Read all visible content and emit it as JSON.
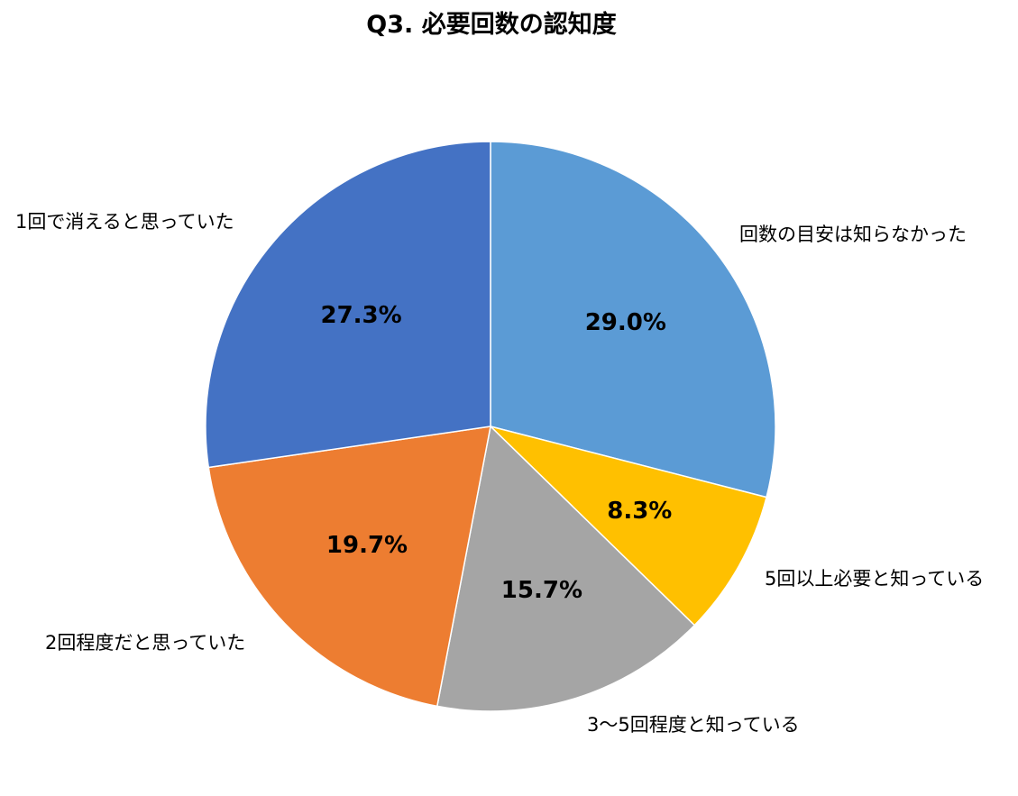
{
  "chart_data": {
    "type": "pie",
    "title": "Q3. 必要回数の認知度",
    "start_angle_deg": 0,
    "direction": "clockwise",
    "slices": [
      {
        "label": "回数の目安は知らなかった",
        "value": 29.0,
        "value_label": "29.0%",
        "color": "#5B9BD5"
      },
      {
        "label": "5回以上必要と知っている",
        "value": 8.3,
        "value_label": "8.3%",
        "color": "#FFC000"
      },
      {
        "label": "3〜5回程度と知っている",
        "value": 15.7,
        "value_label": "15.7%",
        "color": "#A5A5A5"
      },
      {
        "label": "2回程度だと思っていた",
        "value": 19.7,
        "value_label": "19.7%",
        "color": "#ED7D31"
      },
      {
        "label": "1回で消えると思っていた",
        "value": 27.3,
        "value_label": "27.3%",
        "color": "#4472C4"
      }
    ]
  }
}
